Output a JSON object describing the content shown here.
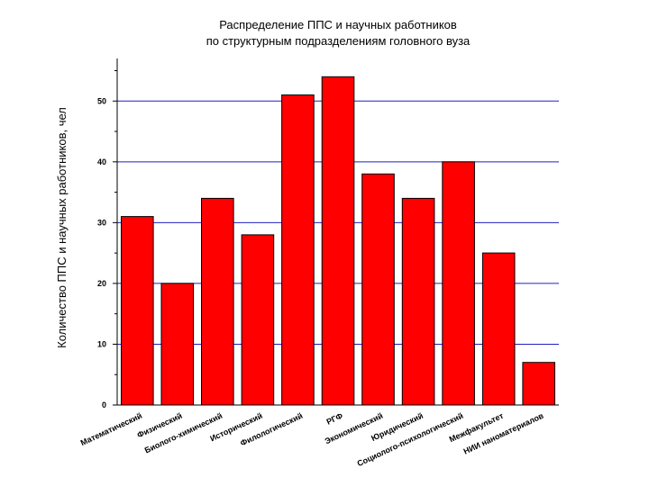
{
  "chart_data": {
    "type": "bar",
    "title": "Распределение ППС и научных работников",
    "subtitle": "по структурным подразделениям головного вуза",
    "xlabel": "",
    "ylabel": "Количество ППС и научных работников, чел",
    "categories": [
      "Математический",
      "Физический",
      "Биолого-химический",
      "Исторический",
      "Филологический",
      "РГФ",
      "Экономический",
      "Юридический",
      "Социолого-психологический",
      "Межфакультет",
      "НИИ наноматериалов"
    ],
    "values": [
      31,
      20,
      34,
      28,
      51,
      54,
      38,
      34,
      40,
      25,
      7
    ],
    "ylim": [
      0,
      57
    ],
    "yticks": [
      0,
      10,
      20,
      30,
      40,
      50
    ],
    "grid": true,
    "colors": {
      "bar": "#ff0000",
      "bar_edge": "#000000",
      "grid": "#2020c0",
      "axis": "#000000"
    }
  }
}
